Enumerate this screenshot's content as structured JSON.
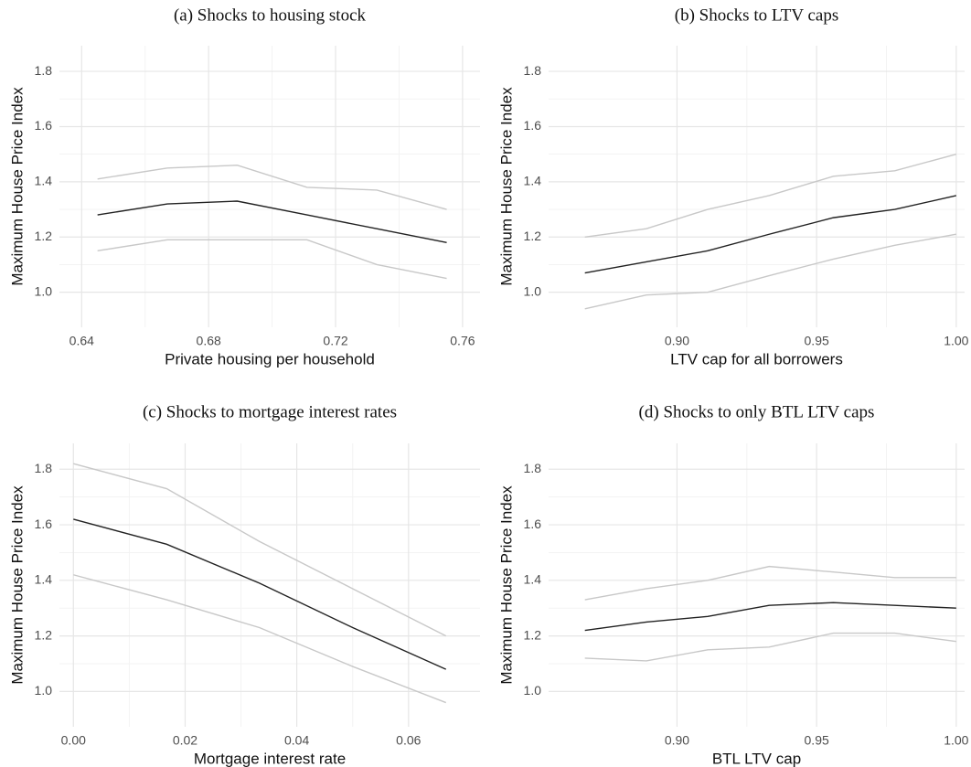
{
  "chart_data": [
    {
      "type": "line",
      "title": "(a) Shocks to housing stock",
      "x_label": "Private housing per household",
      "y_label": "Maximum House Price Index",
      "x": [
        0.645,
        0.667,
        0.689,
        0.711,
        0.733,
        0.755
      ],
      "series": [
        {
          "color": "#c8c8c8",
          "values": [
            1.41,
            1.45,
            1.46,
            1.38,
            1.37,
            1.3
          ]
        },
        {
          "color": "#222222",
          "values": [
            1.28,
            1.32,
            1.33,
            1.28,
            1.23,
            1.18
          ]
        },
        {
          "color": "#c8c8c8",
          "values": [
            1.15,
            1.19,
            1.19,
            1.19,
            1.1,
            1.05
          ]
        }
      ],
      "xlim": [
        0.633,
        0.7655
      ],
      "ylim": [
        0.873,
        1.893
      ],
      "xticks": [
        0.64,
        0.68,
        0.72,
        0.76
      ],
      "yticks": [
        {
          "value": 1.0,
          "label": "1.0"
        },
        1.2,
        1.4,
        1.6,
        1.8
      ],
      "grid": true
    },
    {
      "type": "line",
      "title": "(b) Shocks to LTV caps",
      "x_label": "LTV cap for all borrowers",
      "y_label": "Maximum House Price Index",
      "x": [
        0.867,
        0.889,
        0.911,
        0.933,
        0.956,
        0.978,
        1.0
      ],
      "series": [
        {
          "color": "#c8c8c8",
          "values": [
            1.2,
            1.23,
            1.3,
            1.35,
            1.42,
            1.44,
            1.5
          ]
        },
        {
          "color": "#222222",
          "values": [
            1.07,
            1.11,
            1.15,
            1.21,
            1.27,
            1.3,
            1.35
          ]
        },
        {
          "color": "#c8c8c8",
          "values": [
            0.94,
            0.99,
            1.0,
            1.06,
            1.12,
            1.17,
            1.21
          ]
        }
      ],
      "xlim": [
        0.854,
        1.003
      ],
      "ylim": [
        0.873,
        1.893
      ],
      "xticks": [
        {
          "value": 0.9,
          "label": "0.90"
        },
        0.95,
        {
          "value": 1.0,
          "label": "1.00"
        }
      ],
      "yticks": [
        {
          "value": 1.0,
          "label": "1.0"
        },
        1.2,
        1.4,
        1.6,
        1.8
      ],
      "grid": true
    },
    {
      "type": "line",
      "title": "(c) Shocks to mortgage interest rates",
      "x_label": "Mortgage interest rate",
      "y_label": "Maximum House Price Index",
      "x": [
        0.0,
        0.0167,
        0.0333,
        0.05,
        0.0667
      ],
      "series": [
        {
          "color": "#c8c8c8",
          "values": [
            1.82,
            1.73,
            1.54,
            1.37,
            1.2
          ]
        },
        {
          "color": "#222222",
          "values": [
            1.62,
            1.53,
            1.39,
            1.23,
            1.08
          ]
        },
        {
          "color": "#c8c8c8",
          "values": [
            1.42,
            1.33,
            1.23,
            1.09,
            0.96
          ]
        }
      ],
      "xlim": [
        -0.0025,
        0.0728
      ],
      "ylim": [
        0.873,
        1.893
      ],
      "xticks": [
        {
          "value": 0,
          "label": "0.00"
        },
        0.02,
        0.04,
        0.06
      ],
      "yticks": [
        {
          "value": 1.0,
          "label": "1.0"
        },
        1.2,
        1.4,
        1.6,
        1.8
      ],
      "grid": true
    },
    {
      "type": "line",
      "title": "(d) Shocks to only BTL LTV caps",
      "x_label": "BTL LTV cap",
      "y_label": "Maximum House Price Index",
      "x": [
        0.867,
        0.889,
        0.911,
        0.933,
        0.956,
        0.978,
        1.0
      ],
      "series": [
        {
          "color": "#c8c8c8",
          "values": [
            1.33,
            1.37,
            1.4,
            1.45,
            1.43,
            1.41,
            1.41
          ]
        },
        {
          "color": "#222222",
          "values": [
            1.22,
            1.25,
            1.27,
            1.31,
            1.32,
            1.31,
            1.3
          ]
        },
        {
          "color": "#c8c8c8",
          "values": [
            1.12,
            1.11,
            1.15,
            1.16,
            1.21,
            1.21,
            1.18
          ]
        }
      ],
      "xlim": [
        0.854,
        1.003
      ],
      "ylim": [
        0.873,
        1.893
      ],
      "xticks": [
        {
          "value": 0.9,
          "label": "0.90"
        },
        0.95,
        {
          "value": 1.0,
          "label": "1.00"
        }
      ],
      "yticks": [
        {
          "value": 1.0,
          "label": "1.0"
        },
        1.2,
        1.4,
        1.6,
        1.8
      ],
      "grid": true
    }
  ]
}
